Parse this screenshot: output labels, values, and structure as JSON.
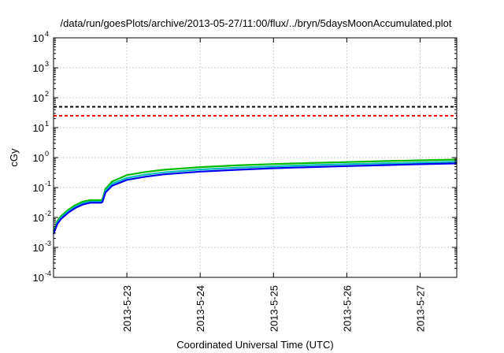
{
  "chart_data": {
    "type": "line",
    "title": "/data/run/goesPlots/archive/2013-05-27/11:00/flux/../bryn/5daysMoonAccumulated.plot",
    "xlabel": "Coordinated Universal Time (UTC)",
    "ylabel": "cGy",
    "y_scale": "log",
    "ylim": [
      0.0001,
      10000
    ],
    "xlim": [
      "2013-05-22 00:00",
      "2013-05-27 12:00"
    ],
    "x_ticks": [
      "2013-5-23",
      "2013-5-24",
      "2013-5-25",
      "2013-5-26",
      "2013-5-27"
    ],
    "y_ticks": [
      {
        "value": 0.0001,
        "base": "10",
        "exp": "-4"
      },
      {
        "value": 0.001,
        "base": "10",
        "exp": "-3"
      },
      {
        "value": 0.01,
        "base": "10",
        "exp": "-2"
      },
      {
        "value": 0.1,
        "base": "10",
        "exp": "-1"
      },
      {
        "value": 1,
        "base": "10",
        "exp": "0"
      },
      {
        "value": 10,
        "base": "10",
        "exp": "1"
      },
      {
        "value": 100,
        "base": "10",
        "exp": "2"
      },
      {
        "value": 1000,
        "base": "10",
        "exp": "3"
      },
      {
        "value": 10000,
        "base": "10",
        "exp": "4"
      }
    ],
    "grid": true,
    "reference_lines": [
      {
        "value": 50,
        "color": "#000000",
        "style": "dashed"
      },
      {
        "value": 25,
        "color": "#ff0000",
        "style": "dashed"
      }
    ],
    "series": [
      {
        "color": "#00bb00",
        "x": [
          "2013-05-22 00:00",
          "2013-05-22 01:12",
          "2013-05-22 02:24",
          "2013-05-22 04:48",
          "2013-05-22 07:12",
          "2013-05-22 09:36",
          "2013-05-22 12:00",
          "2013-05-22 15:36",
          "2013-05-22 16:00",
          "2013-05-22 17:00",
          "2013-05-22 19:12",
          "2013-05-23 00:00",
          "2013-05-23 06:00",
          "2013-05-23 12:00",
          "2013-05-24 00:00",
          "2013-05-24 12:00",
          "2013-05-25 00:00",
          "2013-05-25 12:00",
          "2013-05-26 00:00",
          "2013-05-26 12:00",
          "2013-05-27 00:00",
          "2013-05-27 12:00"
        ],
        "y": [
          0.0035,
          0.0075,
          0.011,
          0.018,
          0.026,
          0.034,
          0.038,
          0.038,
          0.04,
          0.09,
          0.16,
          0.26,
          0.33,
          0.39,
          0.48,
          0.55,
          0.61,
          0.66,
          0.71,
          0.76,
          0.81,
          0.86
        ]
      },
      {
        "color": "#00bbbb",
        "x": [
          "2013-05-22 00:00",
          "2013-05-22 01:12",
          "2013-05-22 02:24",
          "2013-05-22 04:48",
          "2013-05-22 07:12",
          "2013-05-22 09:36",
          "2013-05-22 12:00",
          "2013-05-22 15:36",
          "2013-05-22 16:00",
          "2013-05-22 17:00",
          "2013-05-22 19:12",
          "2013-05-23 00:00",
          "2013-05-23 06:00",
          "2013-05-23 12:00",
          "2013-05-24 00:00",
          "2013-05-24 12:00",
          "2013-05-25 00:00",
          "2013-05-25 12:00",
          "2013-05-26 00:00",
          "2013-05-26 12:00",
          "2013-05-27 00:00",
          "2013-05-27 12:00"
        ],
        "y": [
          0.0031,
          0.0067,
          0.0098,
          0.016,
          0.023,
          0.03,
          0.034,
          0.034,
          0.036,
          0.078,
          0.135,
          0.21,
          0.27,
          0.32,
          0.4,
          0.46,
          0.51,
          0.56,
          0.6,
          0.64,
          0.68,
          0.73
        ]
      },
      {
        "color": "#0000ee",
        "x": [
          "2013-05-22 00:00",
          "2013-05-22 01:12",
          "2013-05-22 02:24",
          "2013-05-22 04:48",
          "2013-05-22 07:12",
          "2013-05-22 09:36",
          "2013-05-22 12:00",
          "2013-05-22 15:36",
          "2013-05-22 16:00",
          "2013-05-22 17:00",
          "2013-05-22 19:12",
          "2013-05-23 00:00",
          "2013-05-23 06:00",
          "2013-05-23 12:00",
          "2013-05-24 00:00",
          "2013-05-24 12:00",
          "2013-05-25 00:00",
          "2013-05-25 12:00",
          "2013-05-26 00:00",
          "2013-05-26 12:00",
          "2013-05-27 00:00",
          "2013-05-27 12:00"
        ],
        "y": [
          0.0028,
          0.006,
          0.0088,
          0.0145,
          0.021,
          0.027,
          0.031,
          0.031,
          0.033,
          0.068,
          0.115,
          0.18,
          0.23,
          0.275,
          0.34,
          0.39,
          0.44,
          0.48,
          0.52,
          0.56,
          0.6,
          0.64
        ]
      }
    ]
  }
}
